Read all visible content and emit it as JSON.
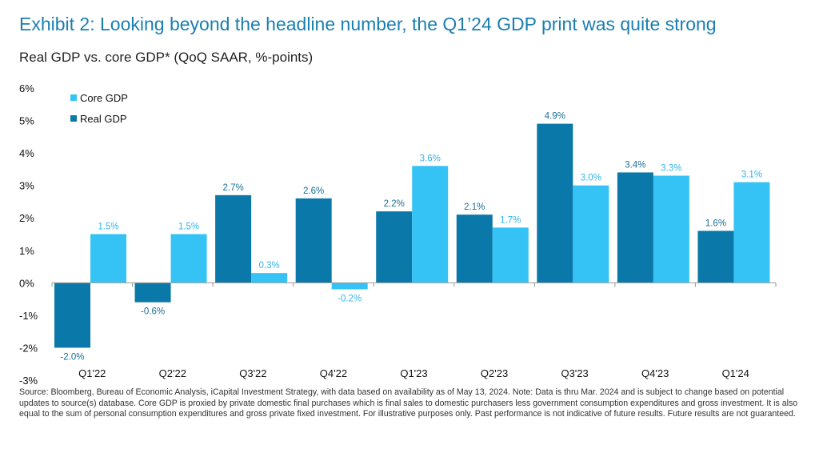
{
  "title": "Exhibit 2: Looking beyond the headline number, the Q1’24 GDP print was quite strong",
  "subtitle": "Real GDP vs. core GDP* (QoQ SAAR, %-points)",
  "footer": "Source: Bloomberg, Bureau of Economic Analysis, iCapital Investment Strategy, with data based on availability as of May 13, 2024. Note: Data is thru Mar. 2024 and is subject to change based on potential updates to source(s) database. Core GDP is proxied by private domestic final purchases which is final sales to domestic purchasers less government consumption expenditures and gross investment. It is also equal to the sum of personal consumption expenditures and gross private fixed investment. For illustrative purposes only. Past performance is not indicative of future results. Future results are not guaranteed.",
  "chart_data": {
    "type": "bar",
    "categories": [
      "Q1'22",
      "Q2'22",
      "Q3'22",
      "Q4'22",
      "Q1'23",
      "Q2'23",
      "Q3'23",
      "Q4'23",
      "Q1'24"
    ],
    "series": [
      {
        "name": "Real GDP",
        "color": "#0a78a8",
        "label_color": "#1a6f96",
        "values": [
          -2.0,
          -0.6,
          2.7,
          2.6,
          2.2,
          2.1,
          4.9,
          3.4,
          1.6
        ]
      },
      {
        "name": "Core GDP",
        "color": "#35c3f5",
        "label_color": "#2fb6ea",
        "values": [
          1.5,
          1.5,
          0.3,
          -0.2,
          3.6,
          1.7,
          3.0,
          3.3,
          3.1
        ]
      }
    ],
    "ylim": [
      -3,
      6
    ],
    "yticks": [
      "6%",
      "5%",
      "4%",
      "3%",
      "2%",
      "1%",
      "0%",
      "-1%",
      "-2%",
      "-3%"
    ],
    "legend_order": [
      "Core GDP",
      "Real GDP"
    ],
    "legend_position": "top-left",
    "grid": false
  }
}
